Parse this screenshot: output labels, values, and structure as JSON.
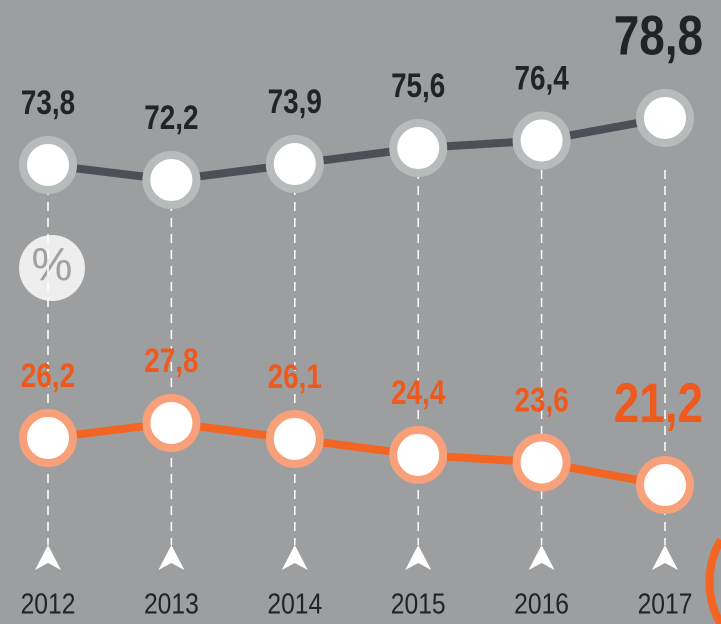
{
  "chart_data": {
    "type": "line",
    "categories": [
      "2012",
      "2013",
      "2014",
      "2015",
      "2016",
      "2017"
    ],
    "unit_label": "%",
    "series": [
      {
        "color": "#4d4e56",
        "ring": "#b8bbbc",
        "label_color": "#222326",
        "values": [
          73.8,
          72.2,
          73.9,
          75.6,
          76.4,
          78.8
        ],
        "value_labels": [
          "73,8",
          "72,2",
          "73,9",
          "75,6",
          "76,4",
          "78,8"
        ]
      },
      {
        "color": "#f26522",
        "ring": "#f8a07a",
        "label_color": "#ee5a1e",
        "values": [
          26.2,
          27.8,
          26.1,
          24.4,
          23.6,
          21.2
        ],
        "value_labels": [
          "26,2",
          "27,8",
          "26,1",
          "24,4",
          "23,6",
          "21,2"
        ]
      }
    ]
  }
}
